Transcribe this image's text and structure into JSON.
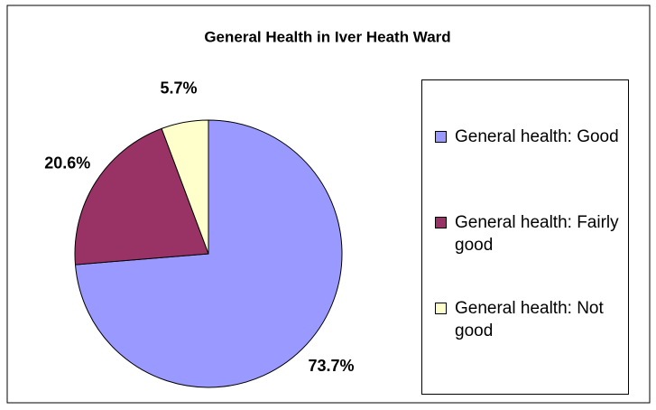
{
  "chart_data": {
    "type": "pie",
    "title": "General Health in Iver Heath Ward",
    "categories": [
      "General health: Good",
      "General health: Fairly good",
      "General health: Not good"
    ],
    "values": [
      73.7,
      20.6,
      5.7
    ],
    "value_labels": [
      "73.7%",
      "20.6%",
      "5.7%"
    ],
    "colors": [
      "#9999ff",
      "#993366",
      "#ffffcc"
    ],
    "legend": "right"
  }
}
